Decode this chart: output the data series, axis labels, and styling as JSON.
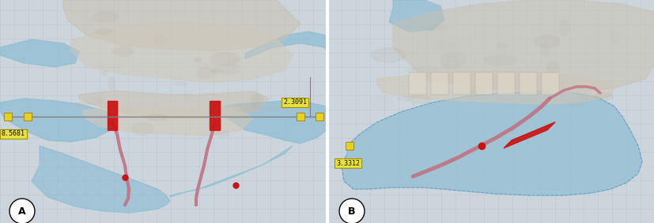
{
  "figure_width": 8.28,
  "figure_height": 2.83,
  "dpi": 100,
  "bg_color": "#cdd5dc",
  "grid_color": "#bec8d0",
  "panel_A": {
    "label": "A",
    "label_text_1": "8.5681",
    "label_text_2": "2.3091",
    "implant_color": "#a8c8dc",
    "red_color": "#cc1111",
    "pink_color": "#b06878",
    "yellow_color": "#e8d830",
    "line_color": "#909090"
  },
  "panel_B": {
    "label": "B",
    "label_text_1": "3.3312",
    "implant_color": "#a8c8dc",
    "red_color": "#cc1111",
    "pink_color": "#b06878",
    "yellow_color": "#e8d830"
  }
}
